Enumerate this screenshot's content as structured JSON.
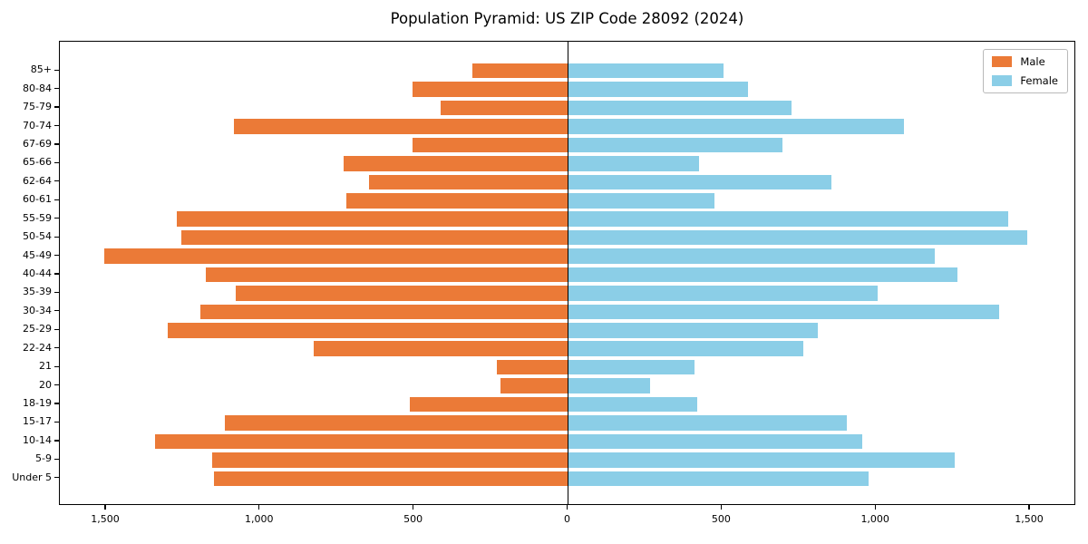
{
  "title": "Population Pyramid: US ZIP Code 28092 (2024)",
  "legend": {
    "male": "Male",
    "female": "Female"
  },
  "colors": {
    "male": "#EB7A37",
    "female": "#8BCEE7",
    "axis": "#000000"
  },
  "chart_data": {
    "type": "bar",
    "subtype": "population-pyramid",
    "title": "Population Pyramid: US ZIP Code 28092 (2024)",
    "categories": [
      "85+",
      "80-84",
      "75-79",
      "70-74",
      "67-69",
      "65-66",
      "62-64",
      "60-61",
      "55-59",
      "50-54",
      "45-49",
      "40-44",
      "35-39",
      "30-34",
      "25-29",
      "22-24",
      "21",
      "20",
      "18-19",
      "15-17",
      "10-14",
      "5-9",
      "Under 5"
    ],
    "series": [
      {
        "name": "Male",
        "side": "left",
        "color": "#EB7A37",
        "values": [
          310,
          505,
          415,
          1085,
          505,
          730,
          645,
          720,
          1270,
          1255,
          1505,
          1175,
          1080,
          1195,
          1300,
          825,
          230,
          220,
          515,
          1115,
          1340,
          1155,
          1150
        ]
      },
      {
        "name": "Female",
        "side": "right",
        "color": "#8BCEE7",
        "values": [
          505,
          585,
          725,
          1090,
          695,
          425,
          855,
          475,
          1430,
          1490,
          1190,
          1265,
          1005,
          1400,
          810,
          765,
          410,
          265,
          420,
          905,
          955,
          1255,
          975
        ]
      }
    ],
    "x_ticks": [
      -1500,
      -1000,
      -500,
      0,
      500,
      1000,
      1500
    ],
    "x_tick_labels": [
      "1,500",
      "1,000",
      "500",
      "0",
      "500",
      "1,000",
      "1,500"
    ],
    "xlim": [
      -1650,
      1650
    ],
    "grid": false,
    "legend_position": "upper right"
  }
}
